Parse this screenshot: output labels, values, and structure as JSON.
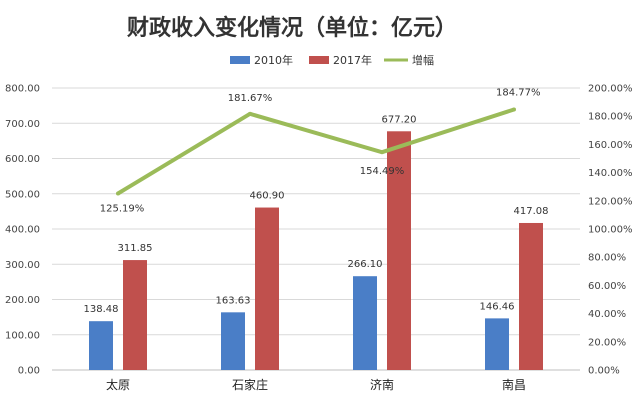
{
  "chart_data": {
    "type": "bar",
    "title": "财政收入变化情况（单位：亿元）",
    "categories": [
      "太原",
      "石家庄",
      "济南",
      "南昌"
    ],
    "series": [
      {
        "name": "2010年",
        "type": "bar",
        "axis": "left",
        "color": "#4A7EC7",
        "values": [
          138.48,
          163.63,
          266.1,
          146.46
        ],
        "labels": [
          "138.48",
          "163.63",
          "266.10",
          "146.46"
        ]
      },
      {
        "name": "2017年",
        "type": "bar",
        "axis": "left",
        "color": "#C0504D",
        "values": [
          311.85,
          460.9,
          677.2,
          417.08
        ],
        "labels": [
          "311.85",
          "460.90",
          "677.20",
          "417.08"
        ]
      },
      {
        "name": "增幅",
        "type": "line",
        "axis": "right",
        "color": "#9BBB59",
        "values": [
          125.19,
          181.67,
          154.49,
          184.77
        ],
        "labels": [
          "125.19%",
          "181.67%",
          "154.49%",
          "184.77%"
        ]
      }
    ],
    "y_left": {
      "min": 0,
      "max": 800,
      "step": 100,
      "tick_labels": [
        "0.00",
        "100.00",
        "200.00",
        "300.00",
        "400.00",
        "500.00",
        "600.00",
        "700.00",
        "800.00"
      ]
    },
    "y_right": {
      "min": 0,
      "max": 200,
      "step": 20,
      "tick_labels": [
        "0.00%",
        "20.00%",
        "40.00%",
        "60.00%",
        "80.00%",
        "100.00%",
        "120.00%",
        "140.00%",
        "160.00%",
        "180.00%",
        "200.00%"
      ]
    },
    "grid": true,
    "legend_position": "top"
  }
}
